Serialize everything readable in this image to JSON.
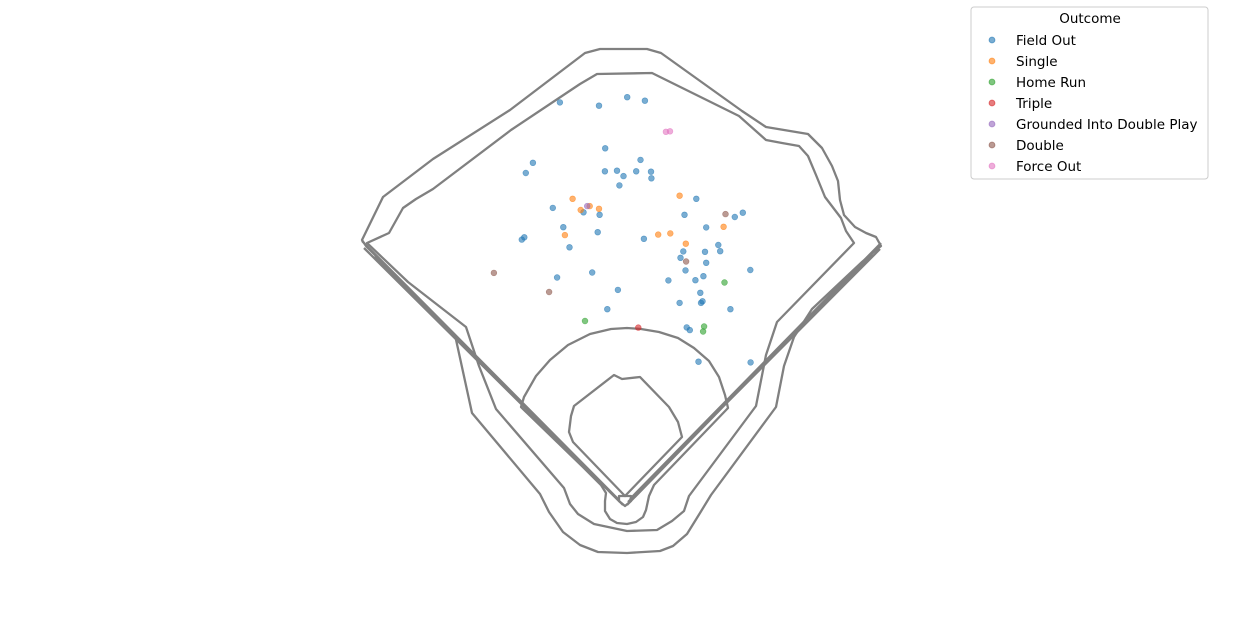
{
  "chart_data": {
    "type": "scatter",
    "title": "",
    "xlabel": "",
    "ylabel": "",
    "axes_visible": false,
    "grid": false,
    "xlim": [
      0,
      250
    ],
    "ylim": [
      -250,
      0
    ],
    "legend": {
      "title": "Outcome",
      "placement": "top-right, outside plot"
    },
    "series": [
      {
        "name": "Field Out",
        "color": "#1f77b4",
        "points": [
          [
            115.7,
            -66.8
          ],
          [
            130.5,
            -64.4
          ],
          [
            143.3,
            -119.5
          ],
          [
            94.4,
            -94.4
          ],
          [
            92.1,
            -99.3
          ],
          [
            91.6,
            -130.4
          ],
          [
            90.8,
            -131.5
          ],
          [
            102.2,
            -149.8
          ],
          [
            113.5,
            -147.4
          ],
          [
            121.8,
            -155.8
          ],
          [
            130.2,
            -131.1
          ],
          [
            118.4,
            -165.1
          ],
          [
            132.5,
            -98.7
          ],
          [
            121.5,
            -98.2
          ],
          [
            123.6,
            -100.8
          ],
          [
            127.7,
            -98.5
          ],
          [
            132.6,
            -101.9
          ],
          [
            129.1,
            -93.0
          ],
          [
            117.6,
            -98.5
          ],
          [
            122.3,
            -105.3
          ],
          [
            115.9,
            -119.5
          ],
          [
            138.1,
            -151.2
          ],
          [
            141.7,
            -162.1
          ],
          [
            143.6,
            -146.4
          ],
          [
            142.9,
            -137.2
          ],
          [
            149.9,
            -137.4
          ],
          [
            142.0,
            -140.3
          ],
          [
            146.8,
            -151.1
          ],
          [
            149.4,
            -149.2
          ],
          [
            148.4,
            -157.2
          ],
          [
            148.6,
            -162.1
          ],
          [
            145.0,
            -175.2
          ],
          [
            144.0,
            -173.9
          ],
          [
            147.8,
            -190.5
          ],
          [
            149.1,
            -161.3
          ],
          [
            158.1,
            -165.1
          ],
          [
            154.8,
            -137.1
          ],
          [
            150.3,
            -125.6
          ],
          [
            164.5,
            -146.2
          ],
          [
            147.1,
            -111.8
          ],
          [
            150.3,
            -142.7
          ],
          [
            154.2,
            -134.1
          ],
          [
            162.1,
            -118.5
          ],
          [
            159.5,
            -120.6
          ],
          [
            164.6,
            -190.8
          ],
          [
            110.7,
            -118.3
          ],
          [
            115.3,
            -127.9
          ],
          [
            104.2,
            -125.5
          ],
          [
            106.2,
            -135.2
          ],
          [
            100.8,
            -116.2
          ],
          [
            103.1,
            -65.2
          ],
          [
            117.7,
            -87.4
          ],
          [
            124.8,
            -62.7
          ]
        ]
      },
      {
        "name": "Single",
        "color": "#ff7f0e",
        "points": [
          [
            104.7,
            -129.3
          ],
          [
            107.2,
            -111.8
          ],
          [
            109.8,
            -117.2
          ],
          [
            115.7,
            -116.6
          ],
          [
            112.7,
            -115.3
          ],
          [
            134.8,
            -129.1
          ],
          [
            143.7,
            -133.5
          ],
          [
            138.7,
            -128.5
          ],
          [
            155.9,
            -125.3
          ],
          [
            141.7,
            -110.3
          ]
        ]
      },
      {
        "name": "Home Run",
        "color": "#2ca02c",
        "points": [
          [
            111.2,
            -170.8
          ],
          [
            149.3,
            -175.9
          ],
          [
            149.6,
            -173.5
          ],
          [
            156.2,
            -152.2
          ]
        ]
      },
      {
        "name": "Triple",
        "color": "#d62728",
        "points": [
          [
            128.4,
            -174.0
          ]
        ]
      },
      {
        "name": "Grounded Into Double Play",
        "color": "#9467bd",
        "points": [
          [
            111.9,
            -115.3
          ]
        ]
      },
      {
        "name": "Double",
        "color": "#8c564b",
        "points": [
          [
            99.6,
            -156.8
          ],
          [
            143.8,
            -142.1
          ],
          [
            81.8,
            -147.6
          ],
          [
            156.5,
            -119.2
          ]
        ]
      },
      {
        "name": "Force Out",
        "color": "#e377c2",
        "points": [
          [
            137.3,
            -79.4
          ],
          [
            138.6,
            -79.2
          ]
        ]
      }
    ]
  }
}
